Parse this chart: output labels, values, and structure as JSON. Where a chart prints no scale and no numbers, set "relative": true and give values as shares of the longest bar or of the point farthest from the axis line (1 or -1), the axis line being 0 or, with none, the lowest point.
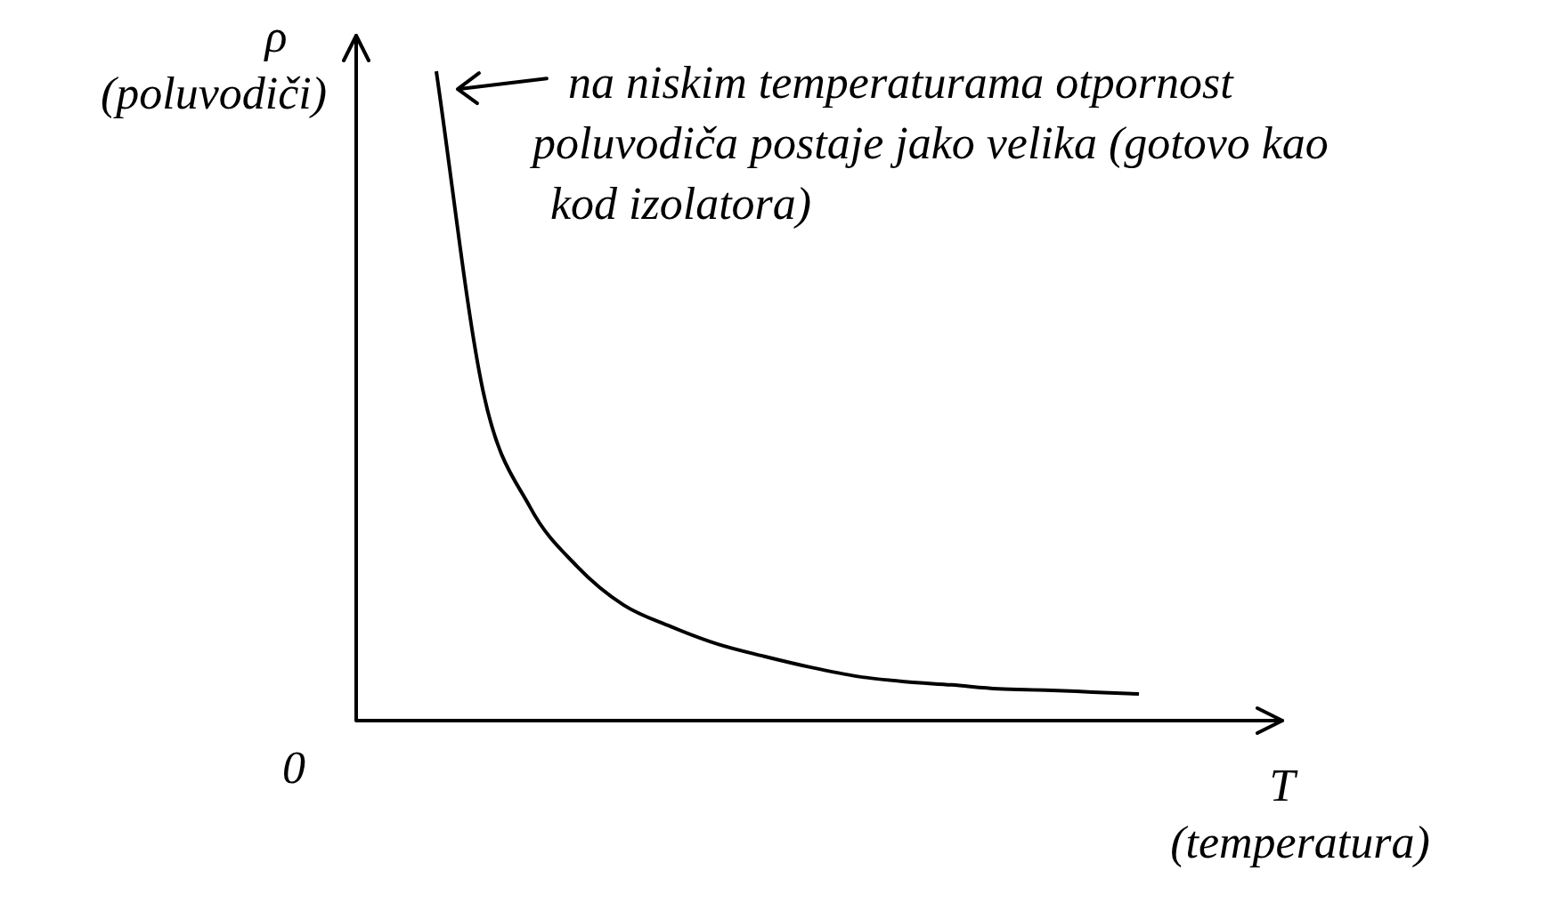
{
  "chart_data": {
    "type": "line",
    "relative": true,
    "marker": "none",
    "color": "#000000",
    "categories": [
      null,
      null,
      null,
      null,
      null,
      null,
      null,
      null,
      null,
      null,
      null,
      null,
      null,
      null,
      null,
      null
    ],
    "values": [
      1.0,
      0.507,
      0.329,
      0.238,
      0.178,
      0.145,
      0.118,
      0.099,
      0.082,
      0.068,
      0.06,
      0.055,
      0.049,
      0.047,
      0.044,
      0.041
    ],
    "xlabel": "T (temperatura)",
    "ylabel": "ρ (poluvodiči)",
    "annotations": [
      "na niskim temperaturama otpornost poluvodiča postaje jako velika (gotovo kao kod izolatora)",
      "0"
    ]
  }
}
